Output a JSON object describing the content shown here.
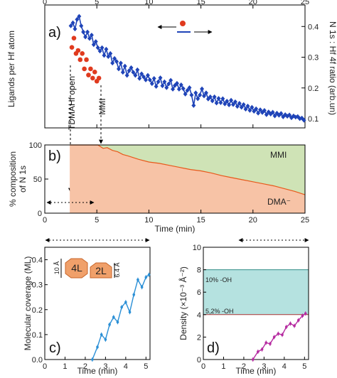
{
  "chart_data": [
    {
      "panel": "a)",
      "type": "scatter",
      "xlabel": "",
      "ylabel": "Ligands per Hf atom",
      "y2label": "N 1s : Hf 4f ratio (arb.un)",
      "xlim": [
        0,
        25
      ],
      "xticks": [
        "0",
        "5",
        "10",
        "15",
        "20",
        "25"
      ],
      "y2lim": [
        0.07,
        0.47
      ],
      "y2ticks": [
        "0.1",
        "0.2",
        "0.3",
        "0.4"
      ],
      "annotations": [
        "TDMAHf open",
        "MMI"
      ],
      "series": [
        {
          "color": "#e03a1e",
          "legend_side": "left",
          "axis": "left",
          "x": [
            2.6,
            2.8,
            3.0,
            3.2,
            3.4,
            3.6,
            3.8,
            4.0,
            4.2,
            4.4,
            4.6,
            4.8,
            5.0,
            5.2
          ],
          "y": [
            0.332,
            0.362,
            0.312,
            0.322,
            0.292,
            0.312,
            0.262,
            0.292,
            0.242,
            0.262,
            0.232,
            0.252,
            0.222,
            0.232
          ]
        },
        {
          "color": "#1f44b8",
          "legend_side": "right",
          "axis": "right",
          "x": [
            2.5,
            2.7,
            2.9,
            3.1,
            3.3,
            3.5,
            3.7,
            3.9,
            4.1,
            4.3,
            4.5,
            4.7,
            4.9,
            5.1,
            5.3,
            5.5,
            5.7,
            5.9,
            6.1,
            6.3,
            6.5,
            6.7,
            6.9,
            7.1,
            7.3,
            7.5,
            7.7,
            7.9,
            8.1,
            8.3,
            8.5,
            8.7,
            8.9,
            9.1,
            9.3,
            9.5,
            9.7,
            9.9,
            10.1,
            10.3,
            10.5,
            10.7,
            10.9,
            11.1,
            11.3,
            11.5,
            11.7,
            11.9,
            12.1,
            12.3,
            12.5,
            12.7,
            12.9,
            13.1,
            13.3,
            13.5,
            13.7,
            13.9,
            14.1,
            14.3,
            14.5,
            14.7,
            14.9,
            15.1,
            15.3,
            15.5,
            15.7,
            15.9,
            16.1,
            16.3,
            16.5,
            16.7,
            16.9,
            17.1,
            17.3,
            17.5,
            17.7,
            17.9,
            18.1,
            18.3,
            18.5,
            18.7,
            18.9,
            19.1,
            19.3,
            19.5,
            19.7,
            19.9,
            20.1,
            20.3,
            20.5,
            20.7,
            20.9,
            21.1,
            21.3,
            21.5,
            21.7,
            21.9,
            22.1,
            22.3,
            22.5,
            22.7,
            22.9,
            23.1,
            23.3,
            23.5,
            23.7,
            23.9,
            24.1,
            24.3,
            24.5,
            24.7,
            24.9
          ],
          "y": [
            0.402,
            0.412,
            0.392,
            0.423,
            0.433,
            0.402,
            0.382,
            0.366,
            0.382,
            0.361,
            0.372,
            0.341,
            0.351,
            0.331,
            0.32,
            0.331,
            0.306,
            0.326,
            0.302,
            0.312,
            0.281,
            0.296,
            0.286,
            0.262,
            0.281,
            0.251,
            0.271,
            0.241,
            0.256,
            0.266,
            0.251,
            0.241,
            0.259,
            0.231,
            0.246,
            0.236,
            0.226,
            0.241,
            0.226,
            0.214,
            0.231,
            0.205,
            0.22,
            0.233,
            0.207,
            0.22,
            0.201,
            0.213,
            0.225,
            0.196,
            0.208,
            0.215,
            0.196,
            0.21,
            0.198,
            0.18,
            0.192,
            0.201,
            0.177,
            0.143,
            0.184,
            0.165,
            0.177,
            0.197,
            0.174,
            0.184,
            0.164,
            0.171,
            0.158,
            0.171,
            0.151,
            0.166,
            0.152,
            0.165,
            0.148,
            0.157,
            0.145,
            0.16,
            0.146,
            0.155,
            0.14,
            0.15,
            0.137,
            0.146,
            0.131,
            0.141,
            0.127,
            0.137,
            0.124,
            0.132,
            0.118,
            0.129,
            0.12,
            0.127,
            0.113,
            0.122,
            0.115,
            0.121,
            0.109,
            0.118,
            0.111,
            0.117,
            0.106,
            0.113,
            0.108,
            0.112,
            0.103,
            0.109,
            0.105,
            0.107,
            0.1,
            0.102,
            0.095
          ]
        }
      ]
    },
    {
      "panel": "b)",
      "type": "area",
      "xlabel": "Time (min)",
      "ylabel": "% composition of N 1s",
      "xlim": [
        0,
        25
      ],
      "xticks": [
        "0",
        "5",
        "10",
        "15",
        "20",
        "25"
      ],
      "ylim": [
        0,
        100
      ],
      "yticks": [
        "0",
        "50",
        "100"
      ],
      "series": [
        {
          "name": "MMI",
          "color": "#cfe3b6"
        },
        {
          "name": "DMA⁻",
          "color": "#f7c3a6"
        }
      ],
      "boundary_color": "#e8591a",
      "x": [
        2.4,
        5.1,
        5.6,
        6.0,
        6.5,
        7.0,
        7.5,
        8.0,
        9.0,
        10.0,
        11.0,
        12.0,
        13.0,
        14.0,
        15.0,
        16.0,
        17.0,
        18.0,
        19.0,
        20.0,
        21.0,
        22.0,
        23.0,
        24.0,
        25.0
      ],
      "dma_percent": [
        100,
        100,
        95,
        96,
        92,
        90,
        86,
        84,
        79,
        75,
        73,
        70,
        67,
        64,
        62,
        59,
        55,
        52,
        49,
        46,
        43,
        40,
        36,
        32,
        27
      ]
    },
    {
      "panel": "c)",
      "type": "line",
      "xlabel": "Time (min)",
      "ylabel": "Molecular coverage (ML)",
      "xlim": [
        0,
        5.2
      ],
      "xticks": [
        "0",
        "1",
        "2",
        "3",
        "4",
        "5"
      ],
      "ylim": [
        0,
        0.45
      ],
      "yticks": [
        "0.0",
        "0.1",
        "0.2",
        "0.3",
        "0.4"
      ],
      "color": "#2a8fd6",
      "x": [
        2.35,
        2.6,
        2.8,
        3.0,
        3.2,
        3.4,
        3.6,
        3.8,
        4.0,
        4.2,
        4.4,
        4.6,
        4.8,
        5.0,
        5.15
      ],
      "y": [
        0.0,
        0.05,
        0.1,
        0.08,
        0.14,
        0.17,
        0.15,
        0.21,
        0.23,
        0.19,
        0.26,
        0.32,
        0.29,
        0.33,
        0.34
      ],
      "inset_labels": [
        "4L",
        "2L",
        "10 Å",
        "6.4 Å"
      ]
    },
    {
      "panel": "d)",
      "type": "line",
      "xlabel": "Time (min)",
      "ylabel": "Density (×10⁻³ Å⁻²)",
      "xlim": [
        0,
        5.2
      ],
      "xticks": [
        "0",
        "1",
        "2",
        "3",
        "4",
        "5"
      ],
      "ylim": [
        0,
        10
      ],
      "yticks": [
        "0",
        "2",
        "4",
        "6",
        "8",
        "10"
      ],
      "color": "#b52aa0",
      "x": [
        2.45,
        2.7,
        2.9,
        3.1,
        3.3,
        3.5,
        3.7,
        3.9,
        4.1,
        4.3,
        4.5,
        4.7,
        4.9,
        5.05
      ],
      "y": [
        0.0,
        0.7,
        0.9,
        1.5,
        1.4,
        2.0,
        2.3,
        2.2,
        2.9,
        3.2,
        3.0,
        3.5,
        3.9,
        4.1
      ],
      "band": {
        "low": 4.0,
        "high": 8.0,
        "low_label": "5,2% -OH",
        "high_label": "10% -OH",
        "color": "#b5e2e0"
      }
    }
  ]
}
